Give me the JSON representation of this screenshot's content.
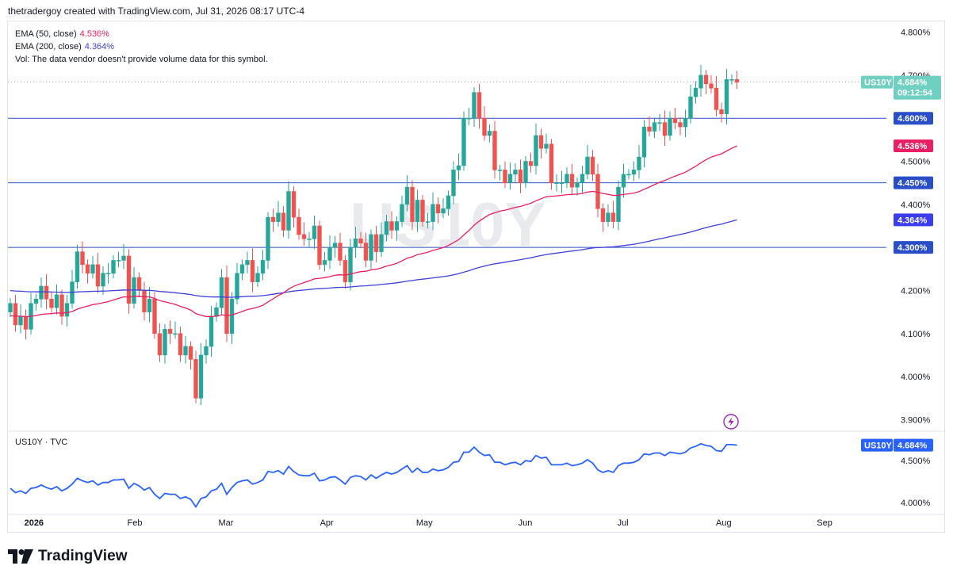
{
  "header": {
    "text": "thetradergoy created with TradingView.com, Jul 31, 2026 08:17 UTC-4"
  },
  "legend": {
    "ema50_label": "EMA (50, close)",
    "ema50_value": "4.536%",
    "ema200_label": "EMA (200, close)",
    "ema200_value": "4.364%",
    "vol_text": "Vol: The data vendor doesn't provide volume data for this symbol."
  },
  "watermark": "US10Y",
  "price_tag": {
    "symbol": "US10Y",
    "price": "4.684%",
    "countdown": "09:12:54"
  },
  "hline_tags": [
    "4.600%",
    "4.450%",
    "4.300%"
  ],
  "ema_tags": {
    "ema50": "4.536%",
    "ema200": "4.364%"
  },
  "indicator": {
    "label": "US10Y · TVC",
    "symbol": "US10Y",
    "price": "4.684%"
  },
  "footer": {
    "brand": "TradingView"
  },
  "colors": {
    "up": "#26a69a",
    "down": "#ef5350",
    "ema50": "#e91e63",
    "ema200": "#3f3fd8",
    "hline": "#2a4ec8",
    "line": "#2962ff",
    "lasttag": "#6fcfc0"
  },
  "chart_data": [
    {
      "type": "candlestick",
      "symbol": "US10Y",
      "y_unit": "%",
      "ylim": [
        3.875,
        4.825
      ],
      "y_ticks": [
        "3.900%",
        "4.000%",
        "4.100%",
        "4.200%",
        "4.300%",
        "4.400%",
        "4.500%",
        "4.600%",
        "4.700%",
        "4.800%"
      ],
      "x_ticks": [
        "2026",
        "Feb",
        "Mar",
        "Apr",
        "May",
        "Jun",
        "Jul",
        "Aug",
        "Sep"
      ],
      "x_tick_dates": [
        "2026-01-01",
        "2026-02-01",
        "2026-03-01",
        "2026-04-01",
        "2026-05-01",
        "2026-06-01",
        "2026-07-01",
        "2026-08-01",
        "2026-09-01"
      ],
      "x_range": [
        "2025-12-24",
        "2026-09-20"
      ],
      "closes": [
        4.17,
        4.12,
        4.14,
        4.11,
        4.17,
        4.18,
        4.21,
        4.18,
        4.16,
        4.19,
        4.14,
        4.17,
        4.22,
        4.29,
        4.26,
        4.24,
        4.26,
        4.21,
        4.24,
        4.24,
        4.27,
        4.27,
        4.28,
        4.17,
        4.23,
        4.2,
        4.15,
        4.18,
        4.1,
        4.05,
        4.11,
        4.1,
        4.1,
        4.05,
        4.07,
        4.04,
        3.95,
        4.05,
        4.07,
        4.14,
        4.16,
        4.23,
        4.1,
        4.18,
        4.24,
        4.26,
        4.27,
        4.22,
        4.24,
        4.27,
        4.37,
        4.36,
        4.38,
        4.34,
        4.43,
        4.37,
        4.33,
        4.32,
        4.32,
        4.35,
        4.26,
        4.27,
        4.3,
        4.31,
        4.27,
        4.22,
        4.3,
        4.32,
        4.31,
        4.27,
        4.33,
        4.29,
        4.33,
        4.36,
        4.34,
        4.36,
        4.4,
        4.44,
        4.36,
        4.41,
        4.36,
        4.36,
        4.4,
        4.38,
        4.39,
        4.42,
        4.48,
        4.49,
        4.6,
        4.6,
        4.66,
        4.6,
        4.56,
        4.57,
        4.48,
        4.48,
        4.45,
        4.47,
        4.48,
        4.45,
        4.5,
        4.49,
        4.56,
        4.53,
        4.54,
        4.45,
        4.45,
        4.45,
        4.47,
        4.44,
        4.45,
        4.47,
        4.51,
        4.47,
        4.39,
        4.36,
        4.38,
        4.36,
        4.44,
        4.47,
        4.47,
        4.48,
        4.51,
        4.58,
        4.57,
        4.59,
        4.59,
        4.56,
        4.6,
        4.59,
        4.58,
        4.6,
        4.65,
        4.67,
        4.7,
        4.68,
        4.67,
        4.62,
        4.61,
        4.69,
        4.69,
        4.684
      ],
      "ema50": {
        "start": 4.14,
        "end": 4.536
      },
      "ema200": {
        "start": 4.2,
        "end": 4.364
      },
      "last_price": 4.684,
      "horizontal_lines": [
        4.6,
        4.45,
        4.3
      ]
    },
    {
      "type": "line",
      "name": "US10Y · TVC",
      "ylim": [
        3.87,
        4.84
      ],
      "y_ticks": [
        "4.000%",
        "4.500%"
      ],
      "y_unit": "%"
    }
  ]
}
